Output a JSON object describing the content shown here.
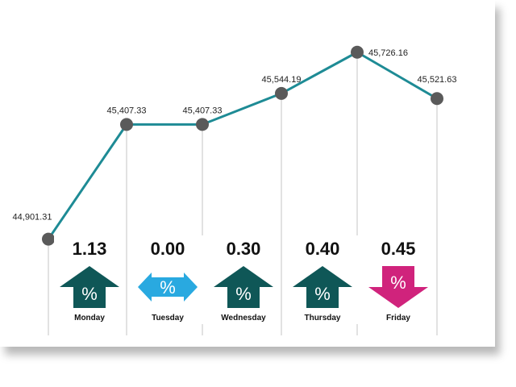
{
  "chart_data": {
    "type": "line",
    "title": "",
    "xlabel": "",
    "ylabel": "",
    "categories": [
      "Monday",
      "Tuesday",
      "Wednesday",
      "Thursday",
      "Friday"
    ],
    "x_start_label": "44,901.31",
    "x_start_value": 44901.31,
    "values": [
      45407.33,
      45407.33,
      45544.19,
      45726.16,
      45521.63
    ],
    "value_labels": [
      "45,407.33",
      "45,407.33",
      "45,544.19",
      "45,726.16",
      "45,521.63"
    ],
    "changes": [
      "1.13",
      "0.00",
      "0.30",
      "0.40",
      "0.45"
    ],
    "directions": [
      "up",
      "flat",
      "up",
      "up",
      "down"
    ],
    "ylim": [
      44850,
      45800
    ],
    "grid": false
  },
  "arrow_symbol": "%",
  "colors": {
    "line": "#1e8b95",
    "marker": "#5a5a5a",
    "up": "#0f5757",
    "flat": "#29a9e0",
    "down": "#d0237c",
    "drop_line": "#c4c4c4"
  }
}
